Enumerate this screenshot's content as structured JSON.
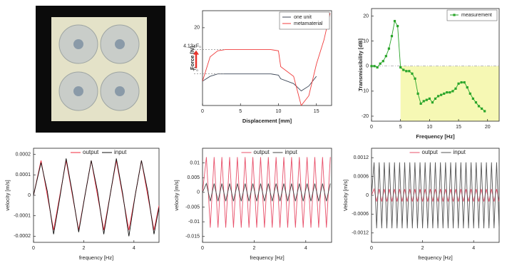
{
  "chart_data": [
    {
      "type": "line",
      "x_label": "Displacement  [mm]",
      "y_label": "Force  [N]",
      "xlim": [
        0,
        17
      ],
      "ylim": [
        -12,
        27
      ],
      "xticks": [
        0,
        5,
        10,
        15
      ],
      "yticks": [
        20
      ],
      "x": [
        0,
        1,
        2,
        3,
        5,
        9,
        10,
        10.3,
        12,
        13,
        14,
        15,
        16,
        16.8
      ],
      "series": [
        {
          "name": "one unit",
          "color": "#3c4656",
          "values": [
            -2,
            0,
            1,
            1,
            1,
            1,
            0.5,
            -1,
            -3,
            -6,
            -4,
            0,
            null,
            null
          ]
        },
        {
          "name": "metamaterial",
          "color": "#f03c3c",
          "values": [
            -2,
            8,
            10.5,
            11,
            11,
            11,
            10.5,
            4,
            0,
            -12,
            -8,
            5,
            15,
            26
          ]
        }
      ],
      "legend": "upper right",
      "annotations": [
        {
          "text": "4.13×F₀"
        },
        {
          "text": "F₀"
        }
      ]
    },
    {
      "type": "line",
      "x_label": "Frequency [Hz]",
      "y_label": "Transmissibility [dB]",
      "xlim": [
        0,
        22
      ],
      "ylim": [
        -22,
        23
      ],
      "xticks": [
        0,
        5,
        10,
        15,
        20
      ],
      "yticks": [
        20,
        10,
        0,
        -10,
        -20
      ],
      "x": [
        0,
        0.5,
        1,
        1.5,
        2,
        2.5,
        3,
        3.5,
        4,
        4.5,
        5,
        5.5,
        6,
        6.5,
        7,
        7.5,
        8,
        8.5,
        9,
        9.5,
        10,
        10.5,
        11,
        11.5,
        12,
        12.5,
        13,
        13.5,
        14,
        14.5,
        15,
        15.5,
        16,
        16.5,
        17,
        17.5,
        18,
        18.5,
        19,
        19.5
      ],
      "series": [
        {
          "name": "measurement",
          "color": "#2aa52a",
          "marker": "square",
          "values": [
            0,
            0,
            -0.5,
            1,
            2,
            4,
            7,
            12,
            18,
            16,
            -0.5,
            -1.5,
            -2,
            -2,
            -3,
            -5,
            -11,
            -15,
            -14,
            -13.5,
            -13,
            -14.5,
            -13,
            -12,
            -11.5,
            -11,
            -10.5,
            -10.5,
            -10,
            -9,
            -7,
            -6.5,
            -6.5,
            -8.5,
            -11,
            -13,
            -14.5,
            -16,
            -17,
            -18
          ]
        }
      ],
      "legend": "upper right",
      "zero_line": true,
      "shade_from_x": 5,
      "shade_color": "#f6f8b4"
    },
    {
      "type": "line",
      "x_label": "frequency [Hz]",
      "y_label": "velocity [m/s]",
      "xlim": [
        0,
        5
      ],
      "ylim": [
        -0.00023,
        0.00023
      ],
      "xticks": [
        0,
        2,
        4
      ],
      "yticks": [
        0.0002,
        0.0001,
        0,
        -0.0001,
        -0.0002
      ],
      "x": [
        0,
        0.3,
        0.55,
        0.8,
        1.05,
        1.3,
        1.55,
        1.8,
        2.05,
        2.3,
        2.55,
        2.8,
        3.05,
        3.3,
        3.55,
        3.8,
        4.05,
        4.3,
        4.55,
        4.8,
        5
      ],
      "series": [
        {
          "name": "output",
          "color": "#f0283c",
          "values": [
            0,
            0.00017,
            0,
            -0.00017,
            0,
            0.00017,
            0,
            -0.00017,
            0,
            0.00017,
            0,
            -0.00017,
            0,
            0.00017,
            0,
            -0.00017,
            0,
            0.00017,
            0,
            -0.00017,
            -5e-05
          ]
        },
        {
          "name": "input",
          "color": "#111111",
          "values": [
            0,
            0.00016,
            2e-05,
            -0.00019,
            -1e-05,
            0.00018,
            1e-05,
            -0.00018,
            0,
            0.00017,
            2e-05,
            -0.00019,
            0,
            0.00018,
            1e-05,
            -0.0002,
            0,
            0.00017,
            2e-05,
            -0.00019,
            -6e-05
          ]
        }
      ],
      "legend": "upper center"
    },
    {
      "type": "line",
      "x_label": "frequency [Hz]",
      "y_label": "velocity [m/s]",
      "xlim": [
        0,
        5
      ],
      "ylim": [
        -0.017,
        0.015
      ],
      "xticks": [
        0,
        2,
        4
      ],
      "yticks": [
        0.01,
        0.005,
        0,
        -0.005,
        -0.01,
        -0.015
      ],
      "x": [
        0,
        0.15,
        0.3,
        0.45,
        0.6,
        0.75,
        0.9,
        1.05,
        1.2,
        1.35,
        1.5,
        1.65,
        1.8,
        1.95,
        2.1,
        2.25,
        2.4,
        2.55,
        2.7,
        2.85,
        3,
        3.15,
        3.3,
        3.45,
        3.6,
        3.75,
        3.9,
        4.05,
        4.2,
        4.35,
        4.5,
        4.65,
        4.8,
        4.95
      ],
      "series": [
        {
          "name": "output",
          "color": "#e8506a",
          "values": [
            0,
            0.012,
            -0.012,
            0.012,
            -0.012,
            0.012,
            -0.012,
            0.012,
            -0.012,
            0.012,
            -0.012,
            0.012,
            -0.012,
            0.012,
            -0.012,
            0.012,
            -0.012,
            0.012,
            -0.012,
            0.012,
            -0.012,
            0.012,
            -0.012,
            0.012,
            -0.012,
            0.012,
            -0.012,
            0.012,
            -0.012,
            0.012,
            -0.012,
            0.012,
            -0.012,
            0.012
          ]
        },
        {
          "name": "input",
          "color": "#444444",
          "values": [
            0,
            0.003,
            -0.003,
            0.003,
            -0.003,
            0.003,
            -0.003,
            0.003,
            -0.003,
            0.003,
            -0.003,
            0.003,
            -0.003,
            0.003,
            -0.003,
            0.003,
            -0.003,
            0.003,
            -0.003,
            0.003,
            -0.003,
            0.003,
            -0.003,
            0.003,
            -0.003,
            0.003,
            -0.003,
            0.003,
            -0.003,
            0.003,
            -0.003,
            0.003,
            -0.003,
            0.003
          ]
        }
      ],
      "legend": "upper center"
    },
    {
      "type": "line",
      "x_label": "frequency [Hz]",
      "y_label": "Velocity [m/s]",
      "xlim": [
        0,
        5
      ],
      "ylim": [
        -0.0015,
        0.0015
      ],
      "xticks": [
        0,
        2,
        4
      ],
      "yticks": [
        0.0012,
        0.0006,
        0,
        -0.0006,
        -0.0012
      ],
      "x": [
        0,
        0.1,
        0.2,
        0.3,
        0.4,
        0.5,
        0.6,
        0.7,
        0.8,
        0.9,
        1,
        1.1,
        1.2,
        1.3,
        1.4,
        1.5,
        1.6,
        1.7,
        1.8,
        1.9,
        2,
        2.1,
        2.2,
        2.3,
        2.4,
        2.5,
        2.6,
        2.7,
        2.8,
        2.9,
        3,
        3.1,
        3.2,
        3.3,
        3.4,
        3.5,
        3.6,
        3.7,
        3.8,
        3.9,
        4,
        4.1,
        4.2,
        4.3,
        4.4,
        4.5,
        4.6,
        4.7,
        4.8,
        4.9,
        5
      ],
      "series": [
        {
          "name": "output",
          "color": "#e8506a",
          "values": [
            0,
            0.0002,
            -0.0002,
            0.0002,
            -0.0002,
            0.0002,
            -0.0002,
            0.0002,
            -0.0002,
            0.0002,
            -0.0002,
            0.0002,
            -0.0002,
            0.0002,
            -0.0002,
            0.0002,
            -0.0002,
            0.0002,
            -0.0002,
            0.0002,
            -0.0002,
            0.0002,
            -0.0002,
            0.0002,
            -0.0002,
            0.0002,
            -0.0002,
            0.0002,
            -0.0002,
            0.0002,
            -0.0002,
            0.0002,
            -0.0002,
            0.0002,
            -0.0002,
            0.0002,
            -0.0002,
            0.0002,
            -0.0002,
            0.0002,
            -0.0002,
            0.0002,
            -0.0002,
            0.0002,
            -0.0002,
            0.0002,
            -0.0002,
            0.0002,
            -0.0002,
            0.0002,
            -0.0002
          ]
        },
        {
          "name": "input",
          "color": "#555555",
          "values": [
            0,
            0.00105,
            -0.00105,
            0.00105,
            -0.00105,
            0.00105,
            -0.00105,
            0.00105,
            -0.00105,
            0.00105,
            -0.00105,
            0.00105,
            -0.00105,
            0.00105,
            -0.00105,
            0.00105,
            -0.00105,
            0.00105,
            -0.00105,
            0.00105,
            -0.00105,
            0.00105,
            -0.00105,
            0.00105,
            -0.00105,
            0.00105,
            -0.00105,
            0.00105,
            -0.00105,
            0.00105,
            -0.00105,
            0.00105,
            -0.00105,
            0.00105,
            -0.00105,
            0.00105,
            -0.00105,
            0.00105,
            -0.00105,
            0.00105,
            -0.00105,
            0.00105,
            -0.00105,
            0.00105,
            -0.00105,
            0.00105,
            -0.00105,
            0.00105,
            -0.00105,
            0.00105,
            -0.00105
          ]
        }
      ],
      "legend": "upper center"
    }
  ]
}
